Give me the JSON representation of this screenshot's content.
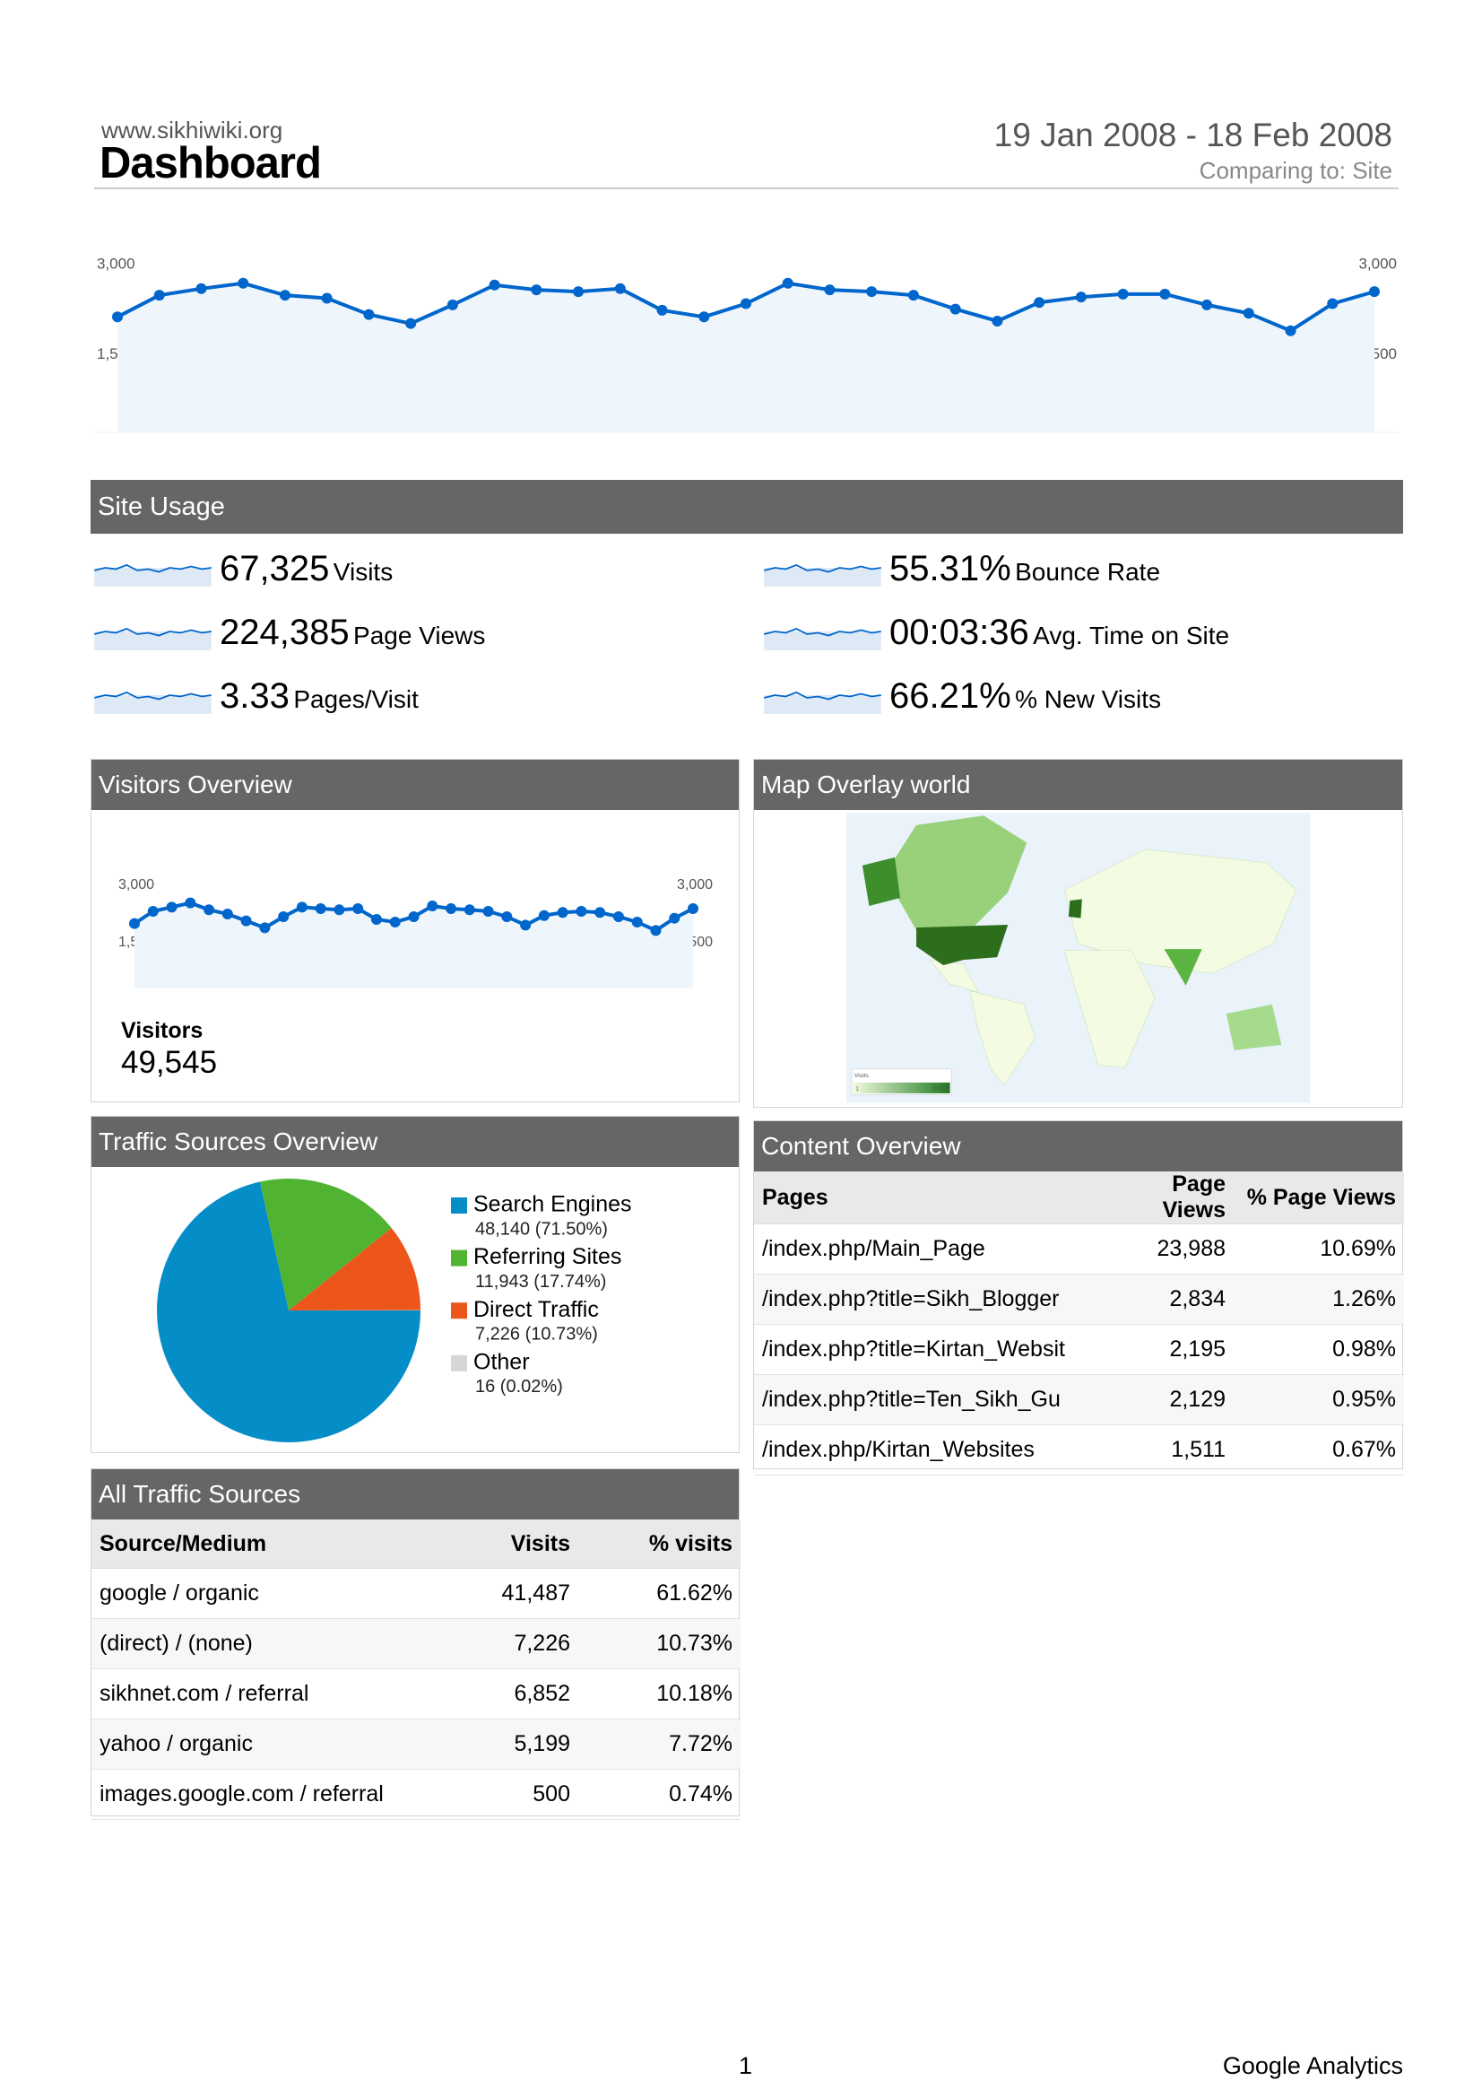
{
  "header": {
    "site": "www.sikhiwiki.org",
    "title": "Dashboard",
    "date_range": "19 Jan 2008 - 18 Feb 2008",
    "comparing": "Comparing to: Site"
  },
  "chart_data": [
    {
      "type": "line",
      "color": "#0066cc",
      "area_color": "#eef5fb",
      "values": [
        2130,
        2490,
        2600,
        2690,
        2490,
        2440,
        2170,
        2020,
        2330,
        2660,
        2580,
        2550,
        2600,
        2240,
        2130,
        2350,
        2690,
        2580,
        2550,
        2490,
        2260,
        2060,
        2370,
        2460,
        2510,
        2510,
        2330,
        2190,
        1900,
        2350,
        2550
      ],
      "ylim": [
        0,
        3000
      ],
      "yticks": [
        {
          "value": 1500,
          "label": "1,500"
        },
        {
          "value": 3000,
          "label": "3,000"
        }
      ]
    },
    {
      "type": "line",
      "color": "#0066cc",
      "area_color": "#eef5fb",
      "values": [
        2000,
        2320,
        2430,
        2540,
        2360,
        2250,
        2070,
        1890,
        2180,
        2430,
        2390,
        2360,
        2390,
        2110,
        2040,
        2180,
        2460,
        2390,
        2360,
        2320,
        2180,
        1960,
        2210,
        2290,
        2320,
        2290,
        2180,
        2040,
        1820,
        2140,
        2390
      ],
      "ylim": [
        0,
        3000
      ],
      "yticks": [
        {
          "value": 1500,
          "label": "1,500"
        },
        {
          "value": 3000,
          "label": "3,000"
        }
      ]
    },
    {
      "type": "pie",
      "title": "Traffic Sources Overview",
      "categories": [
        "Search Engines",
        "Referring Sites",
        "Direct Traffic",
        "Other"
      ],
      "values": [
        48140,
        11943,
        7226,
        16
      ],
      "value_labels": [
        "48,140 (71.50%)",
        "11,943 (17.74%)",
        "7,226 (10.73%)",
        "16 (0.02%)"
      ],
      "colors": [
        "#058dc7",
        "#50b432",
        "#ed561b",
        "#d6d6d6"
      ]
    }
  ],
  "site_usage": {
    "title": "Site Usage",
    "metrics": [
      {
        "value": "67,325",
        "label": "Visits"
      },
      {
        "value": "224,385",
        "label": "Page Views"
      },
      {
        "value": "3.33",
        "label": "Pages/Visit"
      },
      {
        "value": "55.31%",
        "label": "Bounce Rate"
      },
      {
        "value": "00:03:36",
        "label": "Avg. Time on Site"
      },
      {
        "value": "66.21%",
        "label": "% New Visits"
      }
    ]
  },
  "visitors_overview": {
    "title": "Visitors Overview",
    "label": "Visitors",
    "value": "49,545"
  },
  "map_overlay": {
    "title": "Map Overlay world",
    "legend_title": "Visits",
    "legend_min": "1",
    "legend_max": "19,995"
  },
  "content_overview": {
    "title": "Content Overview",
    "columns": [
      "Pages",
      "Page Views",
      "% Page Views"
    ],
    "rows": [
      [
        "/index.php/Main_Page",
        "23,988",
        "10.69%"
      ],
      [
        "/index.php?title=Sikh_Blogger",
        "2,834",
        "1.26%"
      ],
      [
        "/index.php?title=Kirtan_Websit",
        "2,195",
        "0.98%"
      ],
      [
        "/index.php?title=Ten_Sikh_Gu",
        "2,129",
        "0.95%"
      ],
      [
        "/index.php/Kirtan_Websites",
        "1,511",
        "0.67%"
      ]
    ]
  },
  "all_traffic_sources": {
    "title": "All Traffic Sources",
    "columns": [
      "Source/Medium",
      "Visits",
      "% visits"
    ],
    "rows": [
      [
        "google / organic",
        "41,487",
        "61.62%"
      ],
      [
        "(direct) / (none)",
        "7,226",
        "10.73%"
      ],
      [
        "sikhnet.com / referral",
        "6,852",
        "10.18%"
      ],
      [
        "yahoo / organic",
        "5,199",
        "7.72%"
      ],
      [
        "images.google.com / referral",
        "500",
        "0.74%"
      ]
    ]
  },
  "footer": {
    "page": "1",
    "brand": "Google Analytics"
  }
}
